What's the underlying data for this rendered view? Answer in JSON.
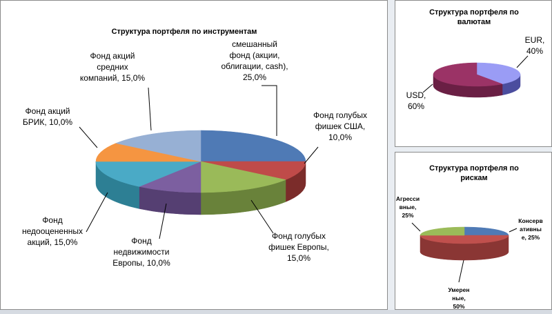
{
  "chart_data": [
    {
      "id": "instruments",
      "type": "pie",
      "title": "Структура портфеля по инструментам",
      "slices": [
        {
          "label": "смешанный фонд (акции, облигации, cash)",
          "value": 25.0,
          "label_text": [
            "смешанный",
            "фонд (акции,",
            "облигации, cash),",
            "25,0%"
          ],
          "top": "#4f7ab5",
          "side": "#395a89"
        },
        {
          "label": "Фонд голубых фишек США",
          "value": 10.0,
          "label_text": [
            "Фонд голубых",
            "фишек США,",
            "10,0%"
          ],
          "top": "#bf4b49",
          "side": "#7b2c2a"
        },
        {
          "label": "Фонд голубых фишек Европы",
          "value": 15.0,
          "label_text": [
            "Фонд голубых",
            "фишек Европы,",
            "15,0%"
          ],
          "top": "#9aba59",
          "side": "#69823a"
        },
        {
          "label": "Фонд недвижимости Европы",
          "value": 10.0,
          "label_text": [
            "Фонд",
            "недвижимости",
            "Европы, 10,0%"
          ],
          "top": "#7c5fa0",
          "side": "#553f72"
        },
        {
          "label": "Фонд недооцененных акций",
          "value": 15.0,
          "label_text": [
            "Фонд",
            "недооцененных",
            "акций, 15,0%"
          ],
          "top": "#4aaac6",
          "side": "#2d7f94"
        },
        {
          "label": "Фонд акций БРИК",
          "value": 10.0,
          "label_text": [
            "Фонд акций",
            "БРИК, 10,0%"
          ],
          "top": "#f59541",
          "side": "#b86a27"
        },
        {
          "label": "Фонд акций средних компаний",
          "value": 15.0,
          "label_text": [
            "Фонд акций",
            "средних",
            "компаний, 15,0%"
          ],
          "top": "#97b0d4",
          "side": "#6b84a8"
        }
      ]
    },
    {
      "id": "currencies",
      "type": "pie",
      "title": "Структура  портфеля по валютам",
      "title_lines": [
        "Структура  портфеля по",
        "валютам"
      ],
      "slices": [
        {
          "label": "EUR",
          "value": 40,
          "label_text": [
            "EUR,",
            "40%"
          ],
          "top": "#9a9cf5",
          "side": "#4b4d9e"
        },
        {
          "label": "USD",
          "value": 60,
          "label_text": [
            "USD,",
            "60%"
          ],
          "top": "#9b3366",
          "side": "#6a1f44"
        }
      ]
    },
    {
      "id": "risks",
      "type": "pie",
      "title": "Структура  портфеля по рискам",
      "title_lines": [
        "Структура  портфеля по",
        "рискам"
      ],
      "slices": [
        {
          "label": "Консервативные",
          "value": 25,
          "label_text": [
            "Консерв",
            "ативны",
            "е, 25%"
          ],
          "top": "#4f7ab5",
          "side": "#395a89"
        },
        {
          "label": "Умеренные",
          "value": 50,
          "label_text": [
            "Умерен",
            "ные,",
            "50%"
          ],
          "top": "#c0504d",
          "side": "#8a3634"
        },
        {
          "label": "Агрессивные",
          "value": 25,
          "label_text": [
            "Агресси",
            "вные,",
            "25%"
          ],
          "top": "#9bbb59",
          "side": "#6e8a3b"
        }
      ]
    }
  ]
}
